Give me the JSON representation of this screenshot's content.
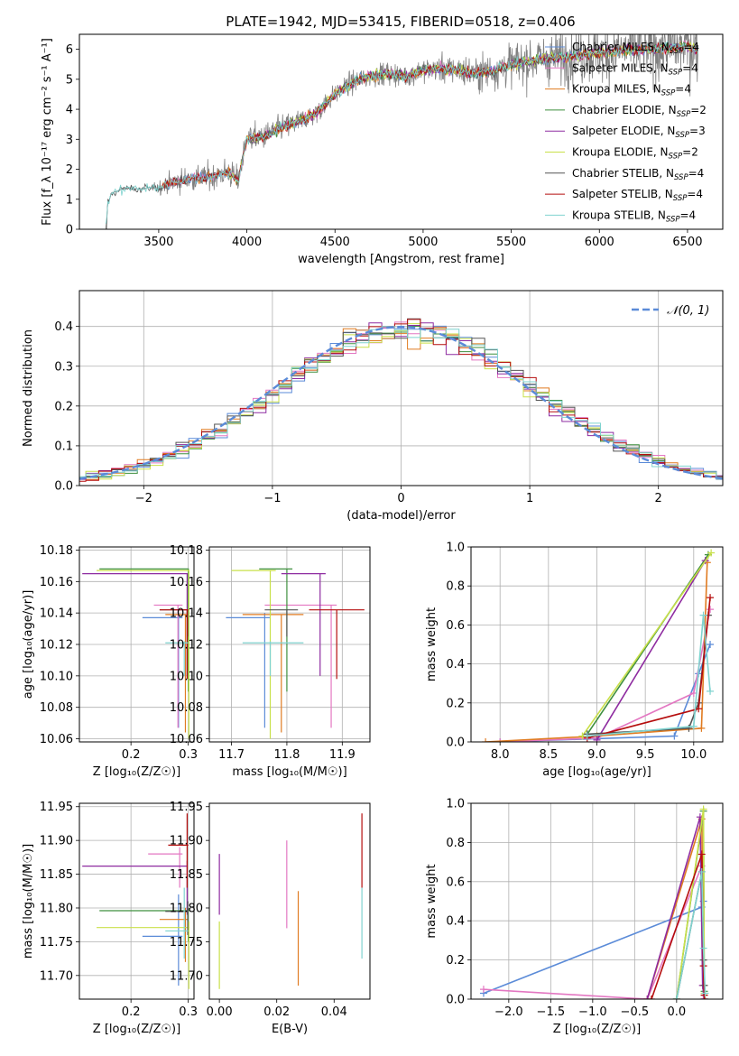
{
  "colors": {
    "chabrier_miles": "#5b8bd8",
    "salpeter_miles": "#e377c2",
    "kroupa_miles": "#e07b21",
    "chabrier_elodie": "#3f8f3f",
    "salpeter_elodie": "#8e2ba0",
    "kroupa_elodie": "#c9e04a",
    "chabrier_stelib": "#555555",
    "salpeter_stelib": "#b50d0d",
    "kroupa_stelib": "#7fd3cf",
    "normal_curve": "#5b8bd8",
    "grid": "#b0b0b0",
    "spectrum": "#808080"
  },
  "chart_data": [
    {
      "id": "spectrum",
      "type": "line",
      "title": "PLATE=1942, MJD=53415, FIBERID=0518, z=0.406",
      "xlabel": "wavelength [Angstrom, rest frame]",
      "ylabel": "Flux [f_λ 10⁻¹⁷ erg cm⁻² s⁻¹ A⁻¹]",
      "xlim": [
        3050,
        6700
      ],
      "ylim": [
        0,
        6.5
      ],
      "xticks": [
        3500,
        4000,
        4500,
        5000,
        5500,
        6000,
        6500
      ],
      "yticks": [
        0,
        1,
        2,
        3,
        4,
        5,
        6
      ],
      "grid": false,
      "legend_position": "top-right",
      "legend": [
        {
          "label": "Chabrier MILES, N",
          "sub": "SSP",
          "suffix": "=4",
          "color_key": "chabrier_miles"
        },
        {
          "label": "Salpeter MILES, N",
          "sub": "SSP",
          "suffix": "=4",
          "color_key": "salpeter_miles"
        },
        {
          "label": "Kroupa MILES, N",
          "sub": "SSP",
          "suffix": "=4",
          "color_key": "kroupa_miles"
        },
        {
          "label": "Chabrier ELODIE, N",
          "sub": "SSP",
          "suffix": "=2",
          "color_key": "chabrier_elodie"
        },
        {
          "label": "Salpeter ELODIE, N",
          "sub": "SSP",
          "suffix": "=3",
          "color_key": "salpeter_elodie"
        },
        {
          "label": "Kroupa ELODIE, N",
          "sub": "SSP",
          "suffix": "=2",
          "color_key": "kroupa_elodie"
        },
        {
          "label": "Chabrier STELIB, N",
          "sub": "SSP",
          "suffix": "=4",
          "color_key": "chabrier_stelib"
        },
        {
          "label": "Salpeter STELIB, N",
          "sub": "SSP",
          "suffix": "=4",
          "color_key": "salpeter_stelib"
        },
        {
          "label": "Kroupa STELIB, N",
          "sub": "SSP",
          "suffix": "=4",
          "color_key": "kroupa_stelib"
        }
      ],
      "continuum_knots": [
        [
          3200,
          0
        ],
        [
          3210,
          0.8
        ],
        [
          3230,
          1.2
        ],
        [
          3300,
          1.35
        ],
        [
          3400,
          1.35
        ],
        [
          3500,
          1.4
        ],
        [
          3600,
          1.6
        ],
        [
          3700,
          1.7
        ],
        [
          3800,
          1.75
        ],
        [
          3900,
          1.9
        ],
        [
          3950,
          1.6
        ],
        [
          4000,
          3.0
        ],
        [
          4100,
          3.1
        ],
        [
          4200,
          3.4
        ],
        [
          4300,
          3.6
        ],
        [
          4400,
          3.9
        ],
        [
          4500,
          4.5
        ],
        [
          4600,
          4.9
        ],
        [
          4700,
          5.1
        ],
        [
          4800,
          5.2
        ],
        [
          4900,
          5.1
        ],
        [
          5000,
          5.3
        ],
        [
          5100,
          5.35
        ],
        [
          5200,
          5.3
        ],
        [
          5300,
          5.2
        ],
        [
          5400,
          5.3
        ],
        [
          5500,
          5.5
        ],
        [
          5600,
          5.6
        ],
        [
          5700,
          5.7
        ],
        [
          5800,
          5.75
        ],
        [
          5900,
          5.8
        ],
        [
          6000,
          5.9
        ],
        [
          6100,
          5.95
        ],
        [
          6200,
          6.0
        ],
        [
          6300,
          6.0
        ],
        [
          6400,
          6.05
        ],
        [
          6500,
          6.1
        ],
        [
          6550,
          6.0
        ]
      ],
      "noise_knots": [
        [
          3200,
          0.02
        ],
        [
          3450,
          0.05
        ],
        [
          3500,
          0.3
        ],
        [
          3600,
          0.5
        ],
        [
          3900,
          0.6
        ],
        [
          4000,
          0.6
        ],
        [
          4500,
          0.45
        ],
        [
          5000,
          0.5
        ],
        [
          5500,
          0.9
        ],
        [
          6000,
          1.3
        ],
        [
          6550,
          1.4
        ]
      ]
    },
    {
      "id": "residuals",
      "type": "histogram",
      "xlabel": "(data-model)/error",
      "ylabel": "Normed distribution",
      "xlim": [
        -2.5,
        2.5
      ],
      "ylim": [
        0,
        0.49
      ],
      "xticks": [
        -2,
        -1,
        0,
        1,
        2
      ],
      "yticks": [
        0.0,
        0.1,
        0.2,
        0.3,
        0.4
      ],
      "grid": true,
      "legend_position": "top-right",
      "legend": [
        {
          "label": "𝒩(0, 1)",
          "color_key": "normal_curve",
          "dashed": true
        }
      ],
      "bin_width": 0.1
    },
    {
      "id": "age_vs_Z",
      "type": "scatter",
      "xlabel": "Z [log₁₀(Z/Z☉)]",
      "ylabel": "age  [log₁₀(age/yr)]",
      "xlim": [
        0.11,
        0.31
      ],
      "ylim": [
        10.058,
        10.182
      ],
      "xticks": [
        0.2,
        0.3
      ],
      "yticks": [
        10.06,
        10.08,
        10.1,
        10.12,
        10.14,
        10.16,
        10.18
      ],
      "grid": true,
      "points": [
        {
          "key": "chabrier_miles",
          "x": 0.283,
          "y": 10.137,
          "xlo": 0.22,
          "xhi": 0.29,
          "ylo": 10.067,
          "yhi": 10.14
        },
        {
          "key": "salpeter_miles",
          "x": 0.282,
          "y": 10.145,
          "xlo": 0.24,
          "xhi": 0.29,
          "ylo": 10.067,
          "yhi": 10.145
        },
        {
          "key": "kroupa_miles",
          "x": 0.295,
          "y": 10.139,
          "xlo": 0.26,
          "xhi": 0.299,
          "ylo": 10.064,
          "yhi": 10.139
        },
        {
          "key": "chabrier_elodie",
          "x": 0.3,
          "y": 10.168,
          "xlo": 0.145,
          "xhi": 0.301,
          "ylo": 10.09,
          "yhi": 10.168
        },
        {
          "key": "salpeter_elodie",
          "x": 0.298,
          "y": 10.165,
          "xlo": 0.115,
          "xhi": 0.299,
          "ylo": 10.1,
          "yhi": 10.165
        },
        {
          "key": "kroupa_elodie",
          "x": 0.301,
          "y": 10.167,
          "xlo": 0.14,
          "xhi": 0.302,
          "ylo": 10.06,
          "yhi": 10.167
        },
        {
          "key": "chabrier_stelib",
          "x": 0.299,
          "y": 10.142,
          "xlo": 0.25,
          "xhi": 0.3,
          "ylo": 10.125,
          "yhi": 10.142
        },
        {
          "key": "salpeter_stelib",
          "x": 0.298,
          "y": 10.142,
          "xlo": 0.25,
          "xhi": 0.3,
          "ylo": 10.098,
          "yhi": 10.142
        },
        {
          "key": "kroupa_stelib",
          "x": 0.293,
          "y": 10.121,
          "xlo": 0.26,
          "xhi": 0.3,
          "ylo": 10.1,
          "yhi": 10.122
        }
      ]
    },
    {
      "id": "age_vs_mass",
      "type": "scatter",
      "xlabel": "mass [log₁₀(M/M☉)]",
      "ylabel": "",
      "xlim": [
        11.66,
        11.95
      ],
      "ylim": [
        10.058,
        10.182
      ],
      "xticks": [
        11.7,
        11.8,
        11.9
      ],
      "yticks": [
        10.06,
        10.08,
        10.1,
        10.12,
        10.14,
        10.16,
        10.18
      ],
      "grid": true,
      "points": [
        {
          "key": "chabrier_miles",
          "x": 11.76,
          "y": 10.137,
          "xlo": 11.69,
          "xhi": 11.77,
          "ylo": 10.067,
          "yhi": 10.14
        },
        {
          "key": "salpeter_miles",
          "x": 11.88,
          "y": 10.145,
          "xlo": 11.76,
          "xhi": 11.89,
          "ylo": 10.067,
          "yhi": 10.145
        },
        {
          "key": "kroupa_miles",
          "x": 11.79,
          "y": 10.139,
          "xlo": 11.72,
          "xhi": 11.83,
          "ylo": 10.064,
          "yhi": 10.139
        },
        {
          "key": "chabrier_elodie",
          "x": 11.8,
          "y": 10.168,
          "xlo": 11.75,
          "xhi": 11.81,
          "ylo": 10.09,
          "yhi": 10.168
        },
        {
          "key": "salpeter_elodie",
          "x": 11.86,
          "y": 10.165,
          "xlo": 11.79,
          "xhi": 11.87,
          "ylo": 10.1,
          "yhi": 10.165
        },
        {
          "key": "kroupa_elodie",
          "x": 11.77,
          "y": 10.167,
          "xlo": 11.7,
          "xhi": 11.78,
          "ylo": 10.06,
          "yhi": 10.167
        },
        {
          "key": "chabrier_stelib",
          "x": 11.8,
          "y": 10.142,
          "xlo": 11.76,
          "xhi": 11.82,
          "ylo": 10.125,
          "yhi": 10.142
        },
        {
          "key": "salpeter_stelib",
          "x": 11.89,
          "y": 10.142,
          "xlo": 11.84,
          "xhi": 11.94,
          "ylo": 10.098,
          "yhi": 10.142
        },
        {
          "key": "kroupa_stelib",
          "x": 11.77,
          "y": 10.121,
          "xlo": 11.72,
          "xhi": 11.83,
          "ylo": 10.1,
          "yhi": 10.122
        }
      ]
    },
    {
      "id": "weight_vs_age",
      "type": "line",
      "xlabel": "age  [log₁₀(age/yr)]",
      "ylabel": "mass weight",
      "xlim": [
        7.7,
        10.3
      ],
      "ylim": [
        0,
        1.0
      ],
      "xticks": [
        8.0,
        8.5,
        9.0,
        9.5,
        10.0
      ],
      "yticks": [
        0.0,
        0.2,
        0.4,
        0.6,
        0.8,
        1.0
      ],
      "grid": true,
      "series": [
        {
          "key": "chabrier_miles",
          "x": [
            8.0,
            9.8,
            10.05,
            10.17
          ],
          "y": [
            0.0,
            0.03,
            0.35,
            0.5
          ]
        },
        {
          "key": "salpeter_miles",
          "x": [
            8.0,
            9.0,
            10.0,
            10.17
          ],
          "y": [
            0.0,
            0.02,
            0.25,
            0.68
          ]
        },
        {
          "key": "kroupa_miles",
          "x": [
            7.85,
            9.0,
            10.08,
            10.14
          ],
          "y": [
            0.0,
            0.03,
            0.07,
            0.92
          ]
        },
        {
          "key": "chabrier_elodie",
          "x": [
            8.9,
            10.15
          ],
          "y": [
            0.04,
            0.96
          ]
        },
        {
          "key": "salpeter_elodie",
          "x": [
            9.0,
            10.12
          ],
          "y": [
            0.01,
            0.93
          ]
        },
        {
          "key": "kroupa_elodie",
          "x": [
            8.85,
            10.18
          ],
          "y": [
            0.03,
            0.97
          ]
        },
        {
          "key": "chabrier_stelib",
          "x": [
            8.9,
            9.95,
            10.05,
            10.15
          ],
          "y": [
            0.04,
            0.07,
            0.2,
            0.65
          ]
        },
        {
          "key": "salpeter_stelib",
          "x": [
            8.9,
            10.05,
            10.17
          ],
          "y": [
            0.02,
            0.17,
            0.74
          ]
        },
        {
          "key": "kroupa_stelib",
          "x": [
            8.9,
            10.0,
            10.1,
            10.17
          ],
          "y": [
            0.03,
            0.08,
            0.65,
            0.26
          ]
        }
      ]
    },
    {
      "id": "mass_vs_Z",
      "type": "scatter",
      "xlabel": "Z [log₁₀(Z/Z☉)]",
      "ylabel": "mass [log₁₀(M/M☉)]",
      "xlim": [
        0.11,
        0.31
      ],
      "ylim": [
        11.665,
        11.955
      ],
      "xticks": [
        0.2,
        0.3
      ],
      "yticks": [
        11.7,
        11.75,
        11.8,
        11.85,
        11.9,
        11.95
      ],
      "grid": true,
      "points": [
        {
          "key": "chabrier_miles",
          "x": 0.283,
          "y": 11.758,
          "xlo": 0.22,
          "xhi": 0.29,
          "ylo": 11.685,
          "yhi": 11.82
        },
        {
          "key": "salpeter_miles",
          "x": 0.285,
          "y": 11.88,
          "xlo": 0.23,
          "xhi": 0.29,
          "ylo": 11.83,
          "yhi": 11.89
        },
        {
          "key": "kroupa_miles",
          "x": 0.295,
          "y": 11.783,
          "xlo": 0.25,
          "xhi": 0.299,
          "ylo": 11.72,
          "yhi": 11.8
        },
        {
          "key": "chabrier_elodie",
          "x": 0.3,
          "y": 11.796,
          "xlo": 0.145,
          "xhi": 0.301,
          "ylo": 11.75,
          "yhi": 11.8
        },
        {
          "key": "salpeter_elodie",
          "x": 0.298,
          "y": 11.862,
          "xlo": 0.115,
          "xhi": 0.299,
          "ylo": 11.79,
          "yhi": 11.87
        },
        {
          "key": "kroupa_elodie",
          "x": 0.301,
          "y": 11.771,
          "xlo": 0.14,
          "xhi": 0.302,
          "ylo": 11.68,
          "yhi": 11.78
        },
        {
          "key": "chabrier_stelib",
          "x": 0.299,
          "y": 11.795,
          "xlo": 0.26,
          "xhi": 0.3,
          "ylo": 11.76,
          "yhi": 11.81
        },
        {
          "key": "salpeter_stelib",
          "x": 0.298,
          "y": 11.893,
          "xlo": 0.265,
          "xhi": 0.3,
          "ylo": 11.83,
          "yhi": 11.94
        },
        {
          "key": "kroupa_stelib",
          "x": 0.293,
          "y": 11.766,
          "xlo": 0.26,
          "xhi": 0.3,
          "ylo": 11.725,
          "yhi": 11.83
        }
      ]
    },
    {
      "id": "mass_vs_ebv",
      "type": "scatter",
      "xlabel": "E(B-V)",
      "ylabel": "",
      "xlim": [
        -0.0035,
        0.0525
      ],
      "ylim": [
        11.665,
        11.955
      ],
      "xticks": [
        0.0,
        0.02,
        0.04
      ],
      "yticks": [
        11.7,
        11.75,
        11.8,
        11.85,
        11.9,
        11.95
      ],
      "grid": false,
      "bars": [
        {
          "key": "salpeter_elodie",
          "x": 0.0,
          "ylo": 11.79,
          "yhi": 11.88
        },
        {
          "key": "kroupa_elodie",
          "x": 0.0,
          "ylo": 11.68,
          "yhi": 11.78
        },
        {
          "key": "salpeter_miles",
          "x": 0.0235,
          "ylo": 11.77,
          "yhi": 11.9
        },
        {
          "key": "kroupa_miles",
          "x": 0.0275,
          "ylo": 11.685,
          "yhi": 11.825
        },
        {
          "key": "salpeter_stelib",
          "x": 0.0497,
          "ylo": 11.83,
          "yhi": 11.94
        },
        {
          "key": "kroupa_stelib",
          "x": 0.0497,
          "ylo": 11.725,
          "yhi": 11.83
        }
      ]
    },
    {
      "id": "weight_vs_Z",
      "type": "line",
      "xlabel": "Z [log₁₀(Z/Z☉)]",
      "ylabel": "mass weight",
      "xlim": [
        -2.45,
        0.55
      ],
      "ylim": [
        0,
        1.0
      ],
      "xticks": [
        -2.0,
        -1.5,
        -1.0,
        -0.5,
        0.0
      ],
      "yticks": [
        0.0,
        0.2,
        0.4,
        0.6,
        0.8,
        1.0
      ],
      "grid": true,
      "series": [
        {
          "key": "chabrier_miles",
          "x": [
            -2.3,
            0.3,
            0.32,
            0.33
          ],
          "y": [
            0.03,
            0.47,
            0.5,
            0.0
          ]
        },
        {
          "key": "salpeter_miles",
          "x": [
            -2.3,
            -0.35,
            0.3,
            0.32
          ],
          "y": [
            0.05,
            0.0,
            0.68,
            0.0
          ]
        },
        {
          "key": "kroupa_miles",
          "x": [
            -0.35,
            0.3,
            0.32,
            0.34
          ],
          "y": [
            0.0,
            0.92,
            0.07,
            0.0
          ]
        },
        {
          "key": "chabrier_elodie",
          "x": [
            0.0,
            0.32,
            0.33
          ],
          "y": [
            0.0,
            0.96,
            0.04
          ]
        },
        {
          "key": "salpeter_elodie",
          "x": [
            -0.35,
            0.28,
            0.31,
            0.33
          ],
          "y": [
            0.0,
            0.93,
            0.07,
            0.0
          ]
        },
        {
          "key": "kroupa_elodie",
          "x": [
            0.0,
            0.32,
            0.33
          ],
          "y": [
            0.0,
            0.97,
            0.03
          ]
        },
        {
          "key": "chabrier_stelib",
          "x": [
            0.0,
            0.3,
            0.32,
            0.33
          ],
          "y": [
            0.0,
            0.65,
            0.2,
            0.07
          ]
        },
        {
          "key": "salpeter_stelib",
          "x": [
            -0.3,
            0.3,
            0.32,
            0.33
          ],
          "y": [
            0.0,
            0.74,
            0.17,
            0.02
          ]
        },
        {
          "key": "kroupa_stelib",
          "x": [
            0.0,
            0.3,
            0.32,
            0.34
          ],
          "y": [
            0.0,
            0.65,
            0.26,
            0.03
          ]
        }
      ]
    }
  ]
}
